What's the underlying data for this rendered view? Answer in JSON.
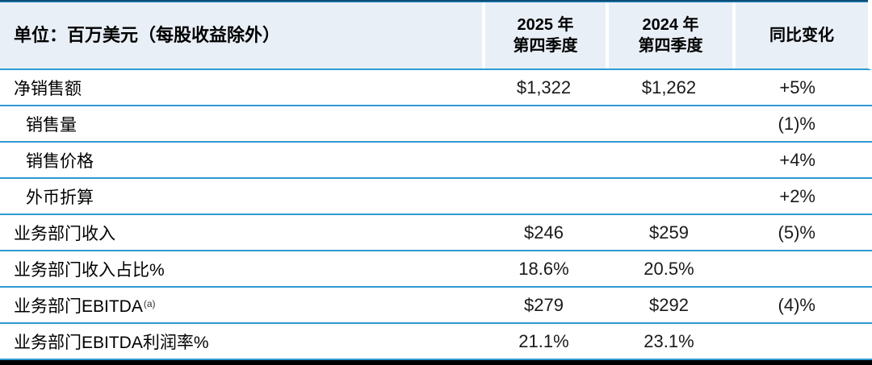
{
  "chart_data": {
    "type": "table",
    "unit_label": "单位：百万美元（每股收益除外）",
    "columns": [
      {
        "line1": "2025 年",
        "line2": "第四季度"
      },
      {
        "line1": "2024 年",
        "line2": "第四季度"
      },
      {
        "line1": "同比变化"
      }
    ],
    "rows": [
      {
        "label": "净销售额",
        "q4_2025": "$1,322",
        "q4_2024": "$1,262",
        "yoy": "+5%"
      },
      {
        "label": "销售量",
        "q4_2025": "",
        "q4_2024": "",
        "yoy": "(1)%"
      },
      {
        "label": "销售价格",
        "q4_2025": "",
        "q4_2024": "",
        "yoy": "+4%"
      },
      {
        "label": "外币折算",
        "q4_2025": "",
        "q4_2024": "",
        "yoy": "+2%"
      },
      {
        "label": "业务部门收入",
        "q4_2025": "$246",
        "q4_2024": "$259",
        "yoy": "(5)%"
      },
      {
        "label": "业务部门收入占比%",
        "q4_2025": "18.6%",
        "q4_2024": "20.5%",
        "yoy": ""
      },
      {
        "label": "业务部门EBITDA",
        "superscript": "(a)",
        "q4_2025": "$279",
        "q4_2024": "$292",
        "yoy": "(4)%"
      },
      {
        "label": "业务部门EBITDA利润率%",
        "q4_2025": "21.1%",
        "q4_2024": "23.1%",
        "yoy": ""
      }
    ],
    "colors": {
      "header_bg": "#e9eff7",
      "separator_blue": "#2e9ad2",
      "top_border_dark": "#0d4e77",
      "bottom_bar": "#000000"
    }
  }
}
